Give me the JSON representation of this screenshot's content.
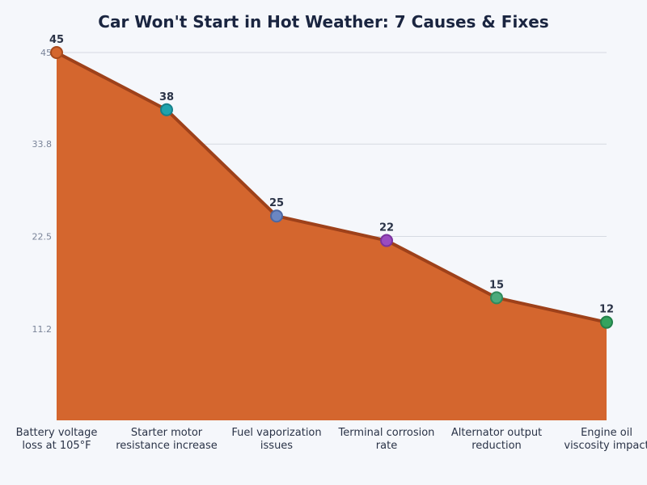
{
  "chart_data": {
    "type": "area",
    "title": "Car Won't Start in Hot Weather: 7 Causes & Fixes",
    "xlabel": "",
    "ylabel": "",
    "categories": [
      [
        "Battery voltage",
        "loss at 105°F"
      ],
      [
        "Starter motor",
        "resistance increase"
      ],
      [
        "Fuel vaporization",
        "issues"
      ],
      [
        "Terminal corrosion",
        "rate"
      ],
      [
        "Alternator output",
        "reduction"
      ],
      [
        "Engine oil",
        "viscosity impact"
      ]
    ],
    "values": [
      45,
      38,
      25,
      22,
      15,
      12
    ],
    "data_labels": [
      "45",
      "38",
      "25",
      "22",
      "15",
      "12"
    ],
    "ylim": [
      0,
      45
    ],
    "yticks": [
      11.2,
      22.5,
      33.8,
      45
    ],
    "ytick_labels": [
      "11.2",
      "22.5",
      "33.8",
      "45"
    ],
    "grid": true,
    "colors": {
      "fill": "#d4662e",
      "line": "#9e411a",
      "points": [
        "#d4662e",
        "#1fa3ad",
        "#6b86c2",
        "#9a4cc0",
        "#4caa7c",
        "#34a35e"
      ],
      "point_strokes": [
        "#a84a1c",
        "#16808a",
        "#4d66a0",
        "#7a339e",
        "#2f8a5c",
        "#23804a"
      ],
      "title": "#1a2540",
      "label": "#2a3347",
      "tick": "#7a8499",
      "grid": "#d6dae2"
    }
  }
}
